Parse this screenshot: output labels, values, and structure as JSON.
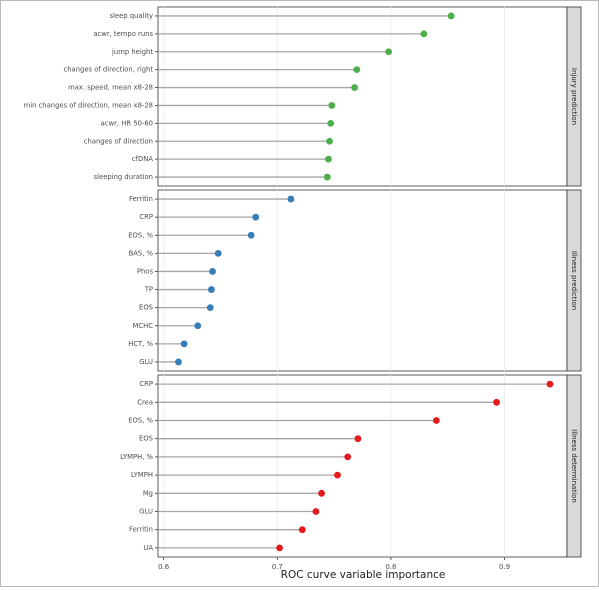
{
  "chart_data": {
    "type": "lollipop",
    "xlabel": "ROC curve variable importance",
    "xlim": [
      0.595,
      0.955
    ],
    "xticks": [
      0.6,
      0.7,
      0.8,
      0.9
    ],
    "xtick_labels": [
      "0.6",
      "0.7",
      "0.8",
      "0.9"
    ],
    "grid": true,
    "panels": [
      {
        "strip_label": "Injury prediction",
        "color": "#4daf4a",
        "items": [
          {
            "label": "sleep quality",
            "value": 0.853
          },
          {
            "label": "acwr, tempo runs",
            "value": 0.829
          },
          {
            "label": "jump height",
            "value": 0.798
          },
          {
            "label": "changes of direction, right",
            "value": 0.77
          },
          {
            "label": "max. speed, mean x8-28",
            "value": 0.768
          },
          {
            "label": "min changes of direction, mean x8-28",
            "value": 0.748
          },
          {
            "label": "acwr, HR 50-60",
            "value": 0.747
          },
          {
            "label": "changes of direction",
            "value": 0.746
          },
          {
            "label": "cfDNA",
            "value": 0.745
          },
          {
            "label": "sleeping duration",
            "value": 0.744
          }
        ]
      },
      {
        "strip_label": "Illness prediction",
        "color": "#377eb8",
        "items": [
          {
            "label": "Ferritin",
            "value": 0.712
          },
          {
            "label": "CRP",
            "value": 0.681
          },
          {
            "label": "EOS, %",
            "value": 0.677
          },
          {
            "label": "BAS, %",
            "value": 0.648
          },
          {
            "label": "Phos",
            "value": 0.643
          },
          {
            "label": "TP",
            "value": 0.642
          },
          {
            "label": "EOS",
            "value": 0.641
          },
          {
            "label": "MCHC",
            "value": 0.63
          },
          {
            "label": "HCT, %",
            "value": 0.618
          },
          {
            "label": "GLU",
            "value": 0.613
          }
        ]
      },
      {
        "strip_label": "Illness determination",
        "color": "#e41a1c",
        "items": [
          {
            "label": "CRP",
            "value": 0.94
          },
          {
            "label": "Crea",
            "value": 0.893
          },
          {
            "label": "EOS, %",
            "value": 0.84
          },
          {
            "label": "EOS",
            "value": 0.771
          },
          {
            "label": "LYMPH, %",
            "value": 0.762
          },
          {
            "label": "LYMPH",
            "value": 0.753
          },
          {
            "label": "Mg",
            "value": 0.739
          },
          {
            "label": "GLU",
            "value": 0.734
          },
          {
            "label": "Ferritin",
            "value": 0.722
          },
          {
            "label": "UA",
            "value": 0.702
          }
        ]
      }
    ]
  }
}
